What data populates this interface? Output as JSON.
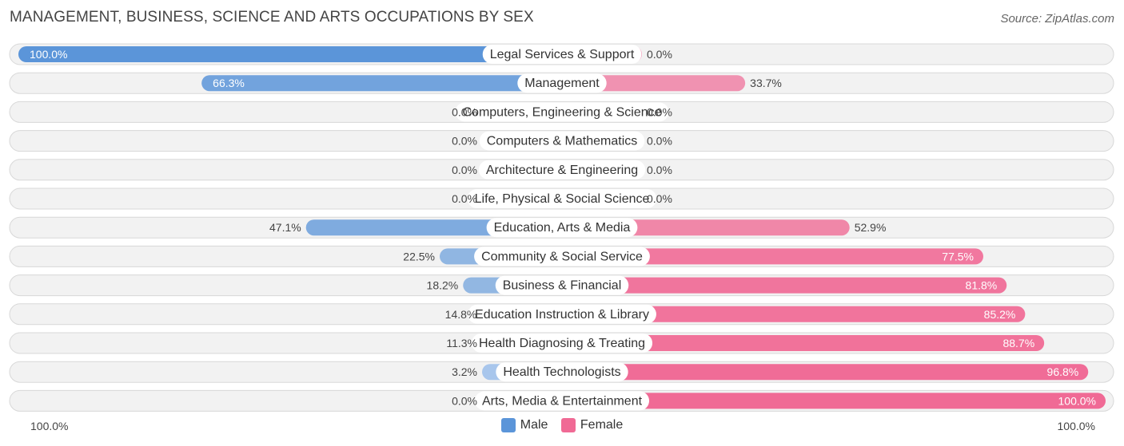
{
  "title": "MANAGEMENT, BUSINESS, SCIENCE AND ARTS OCCUPATIONS BY SEX",
  "source": "Source: ZipAtlas.com",
  "colors": {
    "male_strong": "#5b95d9",
    "male_light": "#a8c6ec",
    "female_strong": "#f06a95",
    "female_light": "#f7a8c2",
    "track_bg": "#f2f2f2",
    "track_border": "#d8d8d8"
  },
  "chart_data": {
    "type": "bar",
    "orientation": "horizontal-diverging",
    "categories": [
      "Legal Services & Support",
      "Management",
      "Computers, Engineering & Science",
      "Computers & Mathematics",
      "Architecture & Engineering",
      "Life, Physical & Social Science",
      "Education, Arts & Media",
      "Community & Social Service",
      "Business & Financial",
      "Education Instruction & Library",
      "Health Diagnosing & Treating",
      "Health Technologists",
      "Arts, Media & Entertainment"
    ],
    "series": [
      {
        "name": "Male",
        "values": [
          100.0,
          66.3,
          0.0,
          0.0,
          0.0,
          0.0,
          47.1,
          22.5,
          18.2,
          14.8,
          11.3,
          3.2,
          0.0
        ]
      },
      {
        "name": "Female",
        "values": [
          0.0,
          33.7,
          0.0,
          0.0,
          0.0,
          0.0,
          52.9,
          77.5,
          81.8,
          85.2,
          88.7,
          96.8,
          100.0
        ]
      }
    ],
    "value_labels": {
      "male": [
        "100.0%",
        "66.3%",
        "0.0%",
        "0.0%",
        "0.0%",
        "0.0%",
        "47.1%",
        "22.5%",
        "18.2%",
        "14.8%",
        "11.3%",
        "3.2%",
        "0.0%"
      ],
      "female": [
        "0.0%",
        "33.7%",
        "0.0%",
        "0.0%",
        "0.0%",
        "0.0%",
        "52.9%",
        "77.5%",
        "81.8%",
        "85.2%",
        "88.7%",
        "96.8%",
        "100.0%"
      ]
    },
    "xlim": [
      -100,
      100
    ],
    "axis_labels": {
      "left": "100.0%",
      "right": "100.0%"
    },
    "legend": [
      "Male",
      "Female"
    ],
    "legend_position": "bottom-center"
  }
}
